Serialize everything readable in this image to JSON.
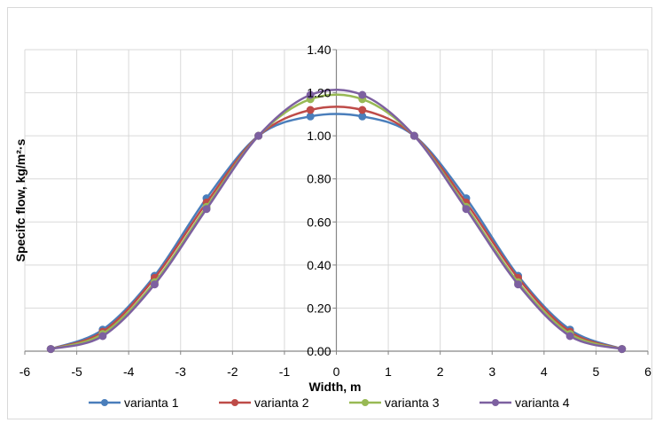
{
  "chart_data": {
    "type": "line",
    "title": "",
    "xlabel": "Width, m",
    "ylabel": "Specifc flow, kg/m²·s",
    "xlim": [
      -6,
      6
    ],
    "ylim": [
      0,
      1.4
    ],
    "x_ticks": [
      "-6",
      "-5",
      "-4",
      "-3",
      "-2",
      "-1",
      "0",
      "1",
      "2",
      "3",
      "4",
      "5",
      "6"
    ],
    "y_ticks": [
      "0.00",
      "0.20",
      "0.40",
      "0.60",
      "0.80",
      "1.00",
      "1.20",
      "1.40"
    ],
    "grid": true,
    "legend_position": "bottom",
    "x": [
      -5.5,
      -4.5,
      -3.5,
      -2.5,
      -1.5,
      -0.5,
      0.5,
      1.5,
      2.5,
      3.5,
      4.5,
      5.5
    ],
    "series": [
      {
        "name": "varianta 1",
        "color": "#4a7ebb",
        "values": [
          0.01,
          0.1,
          0.35,
          0.71,
          1.0,
          1.09,
          1.09,
          1.0,
          0.71,
          0.35,
          0.1,
          0.01
        ]
      },
      {
        "name": "varianta 2",
        "color": "#be4b48",
        "values": [
          0.01,
          0.09,
          0.34,
          0.69,
          1.0,
          1.12,
          1.12,
          1.0,
          0.69,
          0.34,
          0.09,
          0.01
        ]
      },
      {
        "name": "varianta 3",
        "color": "#98b954",
        "values": [
          0.01,
          0.08,
          0.32,
          0.67,
          1.0,
          1.17,
          1.17,
          1.0,
          0.67,
          0.32,
          0.08,
          0.01
        ]
      },
      {
        "name": "varianta 4",
        "color": "#7d60a0",
        "values": [
          0.01,
          0.07,
          0.31,
          0.66,
          1.0,
          1.19,
          1.19,
          1.0,
          0.66,
          0.31,
          0.07,
          0.01
        ]
      }
    ]
  }
}
